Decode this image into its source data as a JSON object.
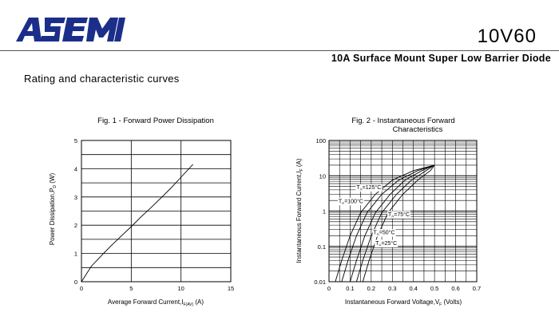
{
  "header": {
    "logo_text": "ASEMI",
    "part_number": "10V60",
    "subtitle": "10A Surface Mount Super Low Barrier Diode",
    "section_title": "Rating and characteristic curves"
  },
  "colors": {
    "brand": "#1b2f8a",
    "line": "#000000",
    "grid": "#000000"
  },
  "chart_data": [
    {
      "type": "line",
      "title": "Fig. 1 - Forward Power Dissipation",
      "xlabel": "Average Forward Current,I_F(AV) (A)",
      "ylabel": "Power Dissipation,P_D (W)",
      "xlim": [
        0,
        15
      ],
      "ylim": [
        0,
        5
      ],
      "xticks": [
        0,
        5,
        10,
        15
      ],
      "yticks": [
        0,
        1,
        2,
        3,
        4,
        5
      ],
      "grid": true,
      "series": [
        {
          "x": [
            0,
            1,
            2,
            3,
            4,
            5,
            6,
            7,
            8,
            9,
            10,
            11.2
          ],
          "y": [
            0,
            0.55,
            0.92,
            1.28,
            1.62,
            1.95,
            2.3,
            2.63,
            2.97,
            3.32,
            3.7,
            4.15
          ]
        }
      ]
    },
    {
      "type": "line",
      "title_lines": [
        "Fig. 2 - Instantaneous Forward",
        "Characteristics"
      ],
      "xlabel": "Instantaneous Forward Voltage,V_F (Volts)",
      "ylabel": "Instantaneous Forward Current,I_F (A)",
      "xlim": [
        0,
        0.7
      ],
      "ylim": [
        0.01,
        100
      ],
      "yscale": "log",
      "xticks": [
        0,
        0.1,
        0.2,
        0.3,
        0.4,
        0.5,
        0.6,
        0.7
      ],
      "xtick_labels": [
        "0",
        "0.1",
        "0.2",
        "0.3",
        "0.4",
        "0.5",
        "0.6",
        "0.7"
      ],
      "yticks": [
        0.01,
        0.1,
        1,
        10,
        100
      ],
      "ytick_labels": [
        "0.01",
        "0.1",
        "1",
        "10",
        "100"
      ],
      "grid": true,
      "series": [
        {
          "name": "T_A=125°C",
          "x": [
            0.03,
            0.06,
            0.1,
            0.15,
            0.22,
            0.3,
            0.4,
            0.5
          ],
          "y": [
            0.01,
            0.04,
            0.2,
            0.9,
            3,
            7.5,
            14,
            20
          ]
        },
        {
          "name": "T_A=100°C",
          "x": [
            0.06,
            0.09,
            0.13,
            0.18,
            0.25,
            0.33,
            0.42,
            0.5
          ],
          "y": [
            0.01,
            0.04,
            0.2,
            0.9,
            3,
            7.5,
            14,
            20
          ]
        },
        {
          "name": "T_A=75°C",
          "x": [
            0.1,
            0.13,
            0.17,
            0.22,
            0.29,
            0.36,
            0.44,
            0.5
          ],
          "y": [
            0.01,
            0.04,
            0.2,
            0.9,
            3,
            7.5,
            14,
            20
          ]
        },
        {
          "name": "T_A=50°C",
          "x": [
            0.13,
            0.16,
            0.2,
            0.25,
            0.32,
            0.39,
            0.46,
            0.5
          ],
          "y": [
            0.01,
            0.04,
            0.2,
            0.9,
            3,
            7.5,
            14,
            20
          ]
        },
        {
          "name": "T_A=25°C",
          "x": [
            0.16,
            0.19,
            0.23,
            0.28,
            0.35,
            0.42,
            0.48,
            0.5
          ],
          "y": [
            0.01,
            0.04,
            0.2,
            0.9,
            3,
            7.5,
            14,
            20
          ]
        }
      ]
    }
  ]
}
